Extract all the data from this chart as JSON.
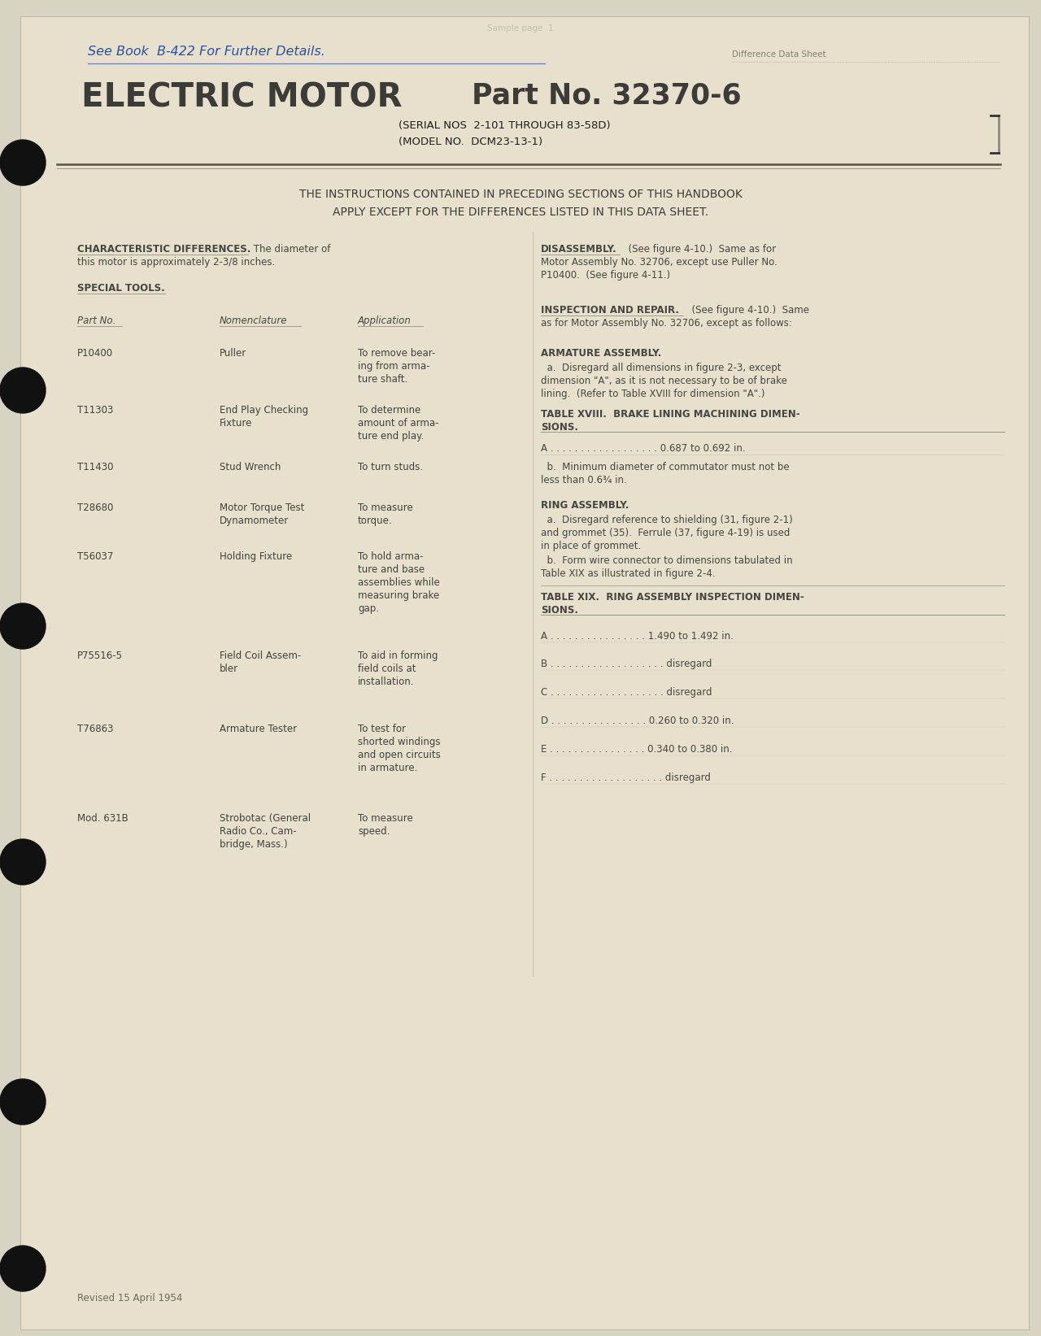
{
  "bg_color": "#d8d4c4",
  "page_color": "#e8e4d4",
  "title_electric": "ELECTRIC MOTOR",
  "title_part": "PART NO. 32370-6",
  "title_serial": "(SERIAL NOS  2-101 THROUGH 83-58D)",
  "title_model": "(MODEL NO.  DCM23-13-1)",
  "header_note": "Difference Data Sheet",
  "handwritten": "See Book  B-422 For Further Details.",
  "instruction_line1": "THE INSTRUCTIONS CONTAINED IN PRECEDING SECTIONS OF THIS HANDBOOK",
  "instruction_line2": "APPLY EXCEPT FOR THE DIFFERENCES LISTED IN THIS DATA SHEET.",
  "char_diff_title": "CHARACTERISTIC DIFFERENCES.",
  "char_diff_text": "  The diameter of",
  "char_diff_text2": "this motor is approximately 2-3/8 inches.",
  "special_tools_title": "SPECIAL TOOLS.",
  "col_part_no": "Part No.",
  "col_nomenclature": "Nomenclature",
  "col_application": "Application",
  "tools": [
    {
      "part": "P10400",
      "name": "Puller",
      "app_lines": [
        "To remove bear-",
        "ing from arma-",
        "ture shaft."
      ]
    },
    {
      "part": "T11303",
      "name_lines": [
        "End Play Checking",
        "Fixture"
      ],
      "app_lines": [
        "To determine",
        "amount of arma-",
        "ture end play."
      ]
    },
    {
      "part": "T11430",
      "name_lines": [
        "Stud Wrench"
      ],
      "app_lines": [
        "To turn studs."
      ]
    },
    {
      "part": "T28680",
      "name_lines": [
        "Motor Torque Test",
        "Dynamometer"
      ],
      "app_lines": [
        "To measure",
        "torque."
      ]
    },
    {
      "part": "T56037",
      "name_lines": [
        "Holding Fixture"
      ],
      "app_lines": [
        "To hold arma-",
        "ture and base",
        "assemblies while",
        "measuring brake",
        "gap."
      ]
    },
    {
      "part": "P75516-5",
      "name_lines": [
        "Field Coil Assem-",
        "bler"
      ],
      "app_lines": [
        "To aid in forming",
        "field coils at",
        "installation."
      ]
    },
    {
      "part": "T76863",
      "name_lines": [
        "Armature Tester"
      ],
      "app_lines": [
        "To test for",
        "shorted windings",
        "and open circuits",
        "in armature."
      ]
    },
    {
      "part": "Mod. 631B",
      "name_lines": [
        "Strobotac (General",
        "Radio Co., Cam-",
        "bridge, Mass.)"
      ],
      "app_lines": [
        "To measure",
        "speed."
      ]
    }
  ],
  "footer": "Revised 15 April 1954"
}
